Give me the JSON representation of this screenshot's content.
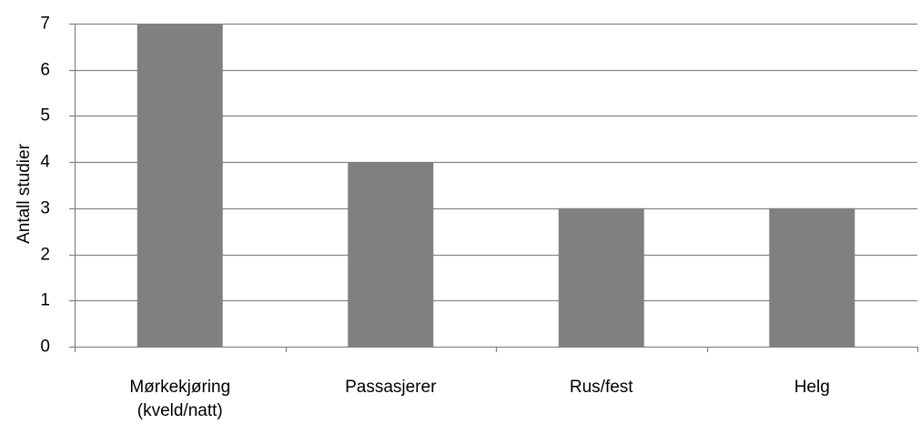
{
  "chart_data": {
    "type": "bar",
    "title": "",
    "xlabel": "",
    "ylabel": "Antall studier",
    "categories": [
      [
        "Mørkekjøring",
        "(kveld/natt)"
      ],
      [
        "Passasjerer"
      ],
      [
        "Rus/fest"
      ],
      [
        "Helg"
      ]
    ],
    "values": [
      7,
      4,
      3,
      3
    ],
    "ylim": [
      0,
      7
    ],
    "yticks": [
      0,
      1,
      2,
      3,
      4,
      5,
      6,
      7
    ],
    "grid": true,
    "legend": "none",
    "colors": {
      "bar": "#808080",
      "grid": "#868686",
      "axis": "#868686",
      "text": "#000000"
    }
  }
}
